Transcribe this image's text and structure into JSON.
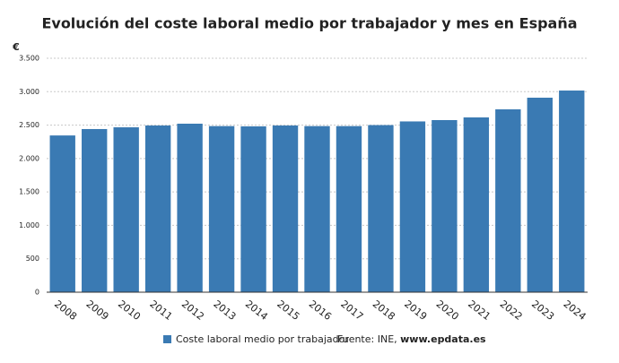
{
  "chart_data": {
    "type": "bar",
    "title": "Evolución del coste laboral medio por trabajador y mes en España",
    "y_axis_label": "€",
    "categories": [
      "2008",
      "2009",
      "2010",
      "2011",
      "2012",
      "2013",
      "2014",
      "2015",
      "2016",
      "2017",
      "2018",
      "2019",
      "2020",
      "2021",
      "2022",
      "2023",
      "2024"
    ],
    "series": [
      {
        "name": "Coste laboral medio por trabajador",
        "color": "#3a7ab3",
        "values": [
          2345,
          2441,
          2467,
          2494,
          2521,
          2485,
          2481,
          2494,
          2485,
          2485,
          2500,
          2555,
          2575,
          2615,
          2736,
          2910,
          3017
        ]
      }
    ],
    "ylim": [
      0,
      3500
    ],
    "yticks": [
      0,
      {
        "value": 500,
        "label": "500"
      },
      {
        "value": 1000,
        "label": "1.000"
      },
      {
        "value": 1500,
        "label": "1.500"
      },
      {
        "value": 2000,
        "label": "2.000"
      },
      {
        "value": 2500,
        "label": "2.500"
      },
      {
        "value": 3000,
        "label": "3.000"
      },
      {
        "value": 3500,
        "label": "3.500"
      }
    ],
    "grid": true,
    "source": "Fuente: INE,",
    "source_link": "www.epdata.es"
  }
}
